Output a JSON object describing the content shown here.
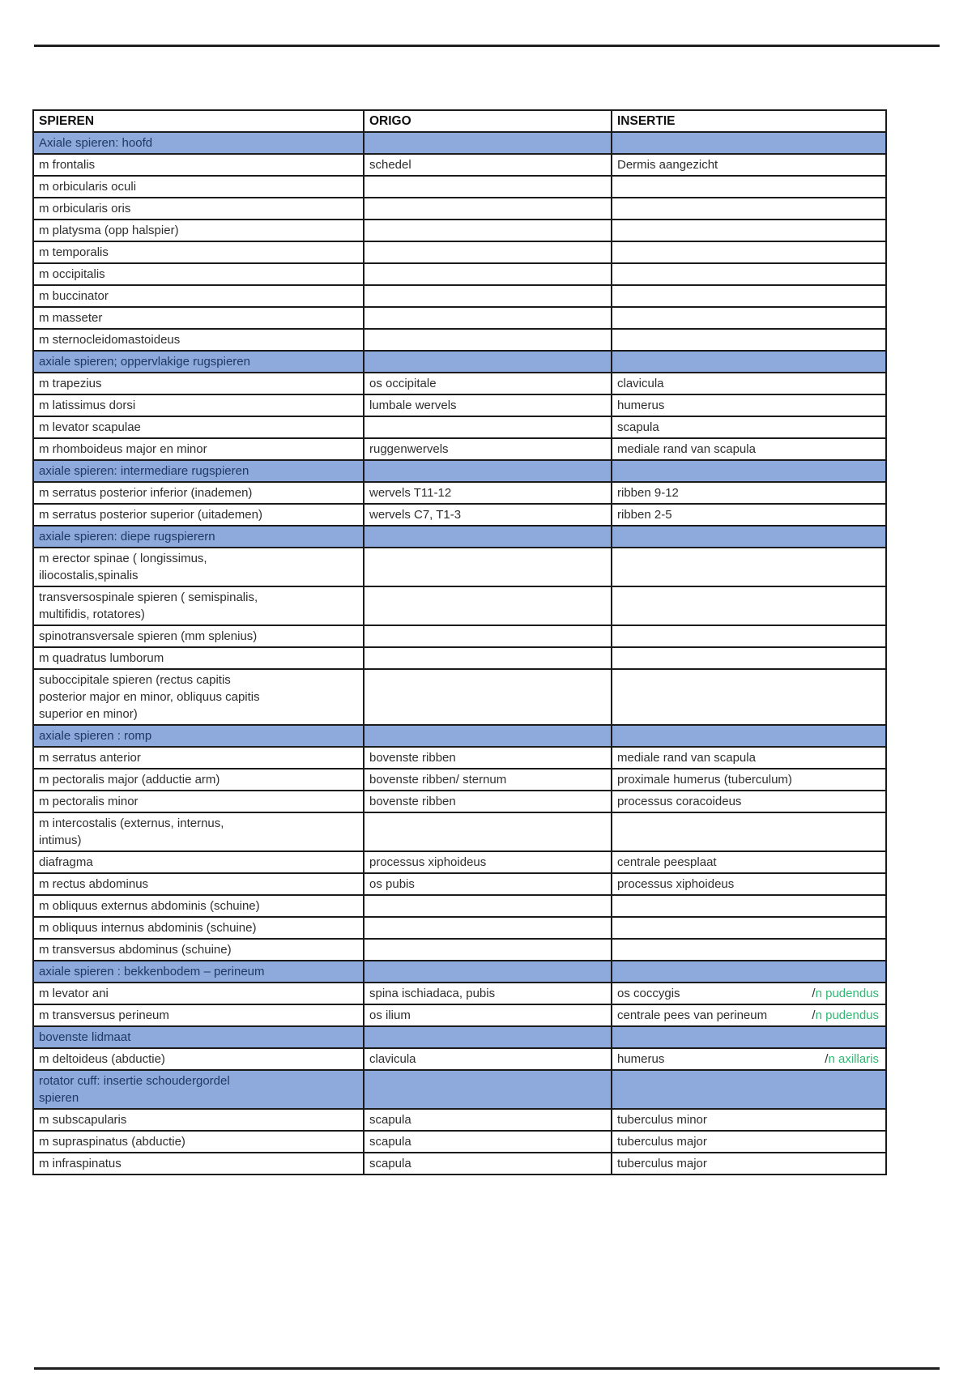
{
  "colors": {
    "section_bg": "#8eaadc",
    "section_text": "#1f3864",
    "nerve_green": "#2eb873",
    "border": "#1b1b1b",
    "text": "#2e2e2e",
    "rule": "#1f1f1f"
  },
  "table": {
    "columns": [
      "SPIEREN",
      "ORIGO",
      "INSERTIE"
    ],
    "rows": [
      {
        "type": "section",
        "label": "Axiale spieren: hoofd"
      },
      {
        "type": "data",
        "spieren": "m frontalis",
        "origo": "schedel",
        "insertie": "Dermis aangezicht"
      },
      {
        "type": "data",
        "spieren": "m orbicularis oculi",
        "origo": "",
        "insertie": ""
      },
      {
        "type": "data",
        "spieren": "m orbicularis oris",
        "origo": "",
        "insertie": ""
      },
      {
        "type": "data",
        "spieren": "m platysma (opp halspier)",
        "origo": "",
        "insertie": ""
      },
      {
        "type": "data",
        "spieren": "m temporalis",
        "origo": "",
        "insertie": ""
      },
      {
        "type": "data",
        "spieren": "m occipitalis",
        "origo": "",
        "insertie": ""
      },
      {
        "type": "data",
        "spieren": "m buccinator",
        "origo": "",
        "insertie": ""
      },
      {
        "type": "data",
        "spieren": "m masseter",
        "origo": "",
        "insertie": ""
      },
      {
        "type": "data",
        "spieren": "m sternocleidomastoideus",
        "origo": "",
        "insertie": ""
      },
      {
        "type": "section",
        "label": "axiale spieren; oppervlakige rugspieren"
      },
      {
        "type": "data",
        "spieren": "m trapezius",
        "origo": "os occipitale",
        "insertie": "clavicula"
      },
      {
        "type": "data",
        "spieren": "m latissimus dorsi",
        "origo": "lumbale wervels",
        "insertie": "humerus"
      },
      {
        "type": "data",
        "spieren": "m levator scapulae",
        "origo": "",
        "insertie": "scapula"
      },
      {
        "type": "data",
        "spieren": "m rhomboideus major en minor",
        "origo": "ruggenwervels",
        "insertie": "mediale rand van scapula"
      },
      {
        "type": "section",
        "label": "axiale spieren: intermediare rugspieren"
      },
      {
        "type": "data",
        "spieren": "m serratus posterior inferior (inademen)",
        "origo": "wervels T11-12",
        "insertie": "ribben 9-12"
      },
      {
        "type": "data",
        "spieren": "m serratus posterior superior (uitademen)",
        "origo": "wervels C7, T1-3",
        "insertie": "ribben 2-5"
      },
      {
        "type": "section",
        "label": "axiale spieren: diepe rugspierern"
      },
      {
        "type": "data",
        "spieren": "m erector spinae ( longissimus,\niliocostalis,spinalis",
        "origo": "",
        "insertie": ""
      },
      {
        "type": "data",
        "spieren": "transversospinale spieren ( semispinalis,\nmultifidis, rotatores)",
        "origo": "",
        "insertie": ""
      },
      {
        "type": "data",
        "spieren": "spinotransversale spieren (mm splenius)",
        "origo": "",
        "insertie": ""
      },
      {
        "type": "data",
        "spieren": "m quadratus lumborum",
        "origo": "",
        "insertie": ""
      },
      {
        "type": "data",
        "spieren": "suboccipitale spieren (rectus capitis\nposterior major en minor, obliquus capitis\nsuperior en minor)",
        "origo": "",
        "insertie": ""
      },
      {
        "type": "section",
        "label": "axiale spieren :  romp"
      },
      {
        "type": "data",
        "spieren": "m serratus anterior",
        "origo": "bovenste ribben",
        "insertie": "mediale rand van scapula"
      },
      {
        "type": "data",
        "spieren": "m pectoralis major (adductie arm)",
        "origo": "bovenste ribben/ sternum",
        "insertie": "proximale humerus (tuberculum)"
      },
      {
        "type": "data",
        "spieren": "m pectoralis minor",
        "origo": "bovenste ribben",
        "insertie": "processus coracoideus"
      },
      {
        "type": "data",
        "spieren": "m intercostalis (externus, internus,\nintimus)",
        "origo": "",
        "insertie": ""
      },
      {
        "type": "data",
        "spieren": "diafragma",
        "origo": "processus xiphoideus",
        "insertie": "centrale peesplaat"
      },
      {
        "type": "data",
        "spieren": "m rectus abdominus",
        "origo": "os pubis",
        "insertie": "processus xiphoideus"
      },
      {
        "type": "data",
        "spieren": "m obliquus externus abdominis (schuine)",
        "origo": "",
        "insertie": ""
      },
      {
        "type": "data",
        "spieren": "m obliquus internus abdominis (schuine)",
        "origo": "",
        "insertie": ""
      },
      {
        "type": "data",
        "spieren": "m transversus abdominus (schuine)",
        "origo": "",
        "insertie": ""
      },
      {
        "type": "section",
        "label": "axiale spieren : bekkenbodem – perineum"
      },
      {
        "type": "data",
        "spieren": "m levator ani",
        "origo": "spina ischiadaca, pubis",
        "insertie": "os coccygis",
        "nerve_prefix": "/",
        "nerve": "n pudendus"
      },
      {
        "type": "data",
        "spieren": "m transversus perineum",
        "origo": "os ilium",
        "insertie": "centrale pees van perineum",
        "nerve_prefix": "/",
        "nerve": "n pudendus"
      },
      {
        "type": "section",
        "label": "bovenste lidmaat"
      },
      {
        "type": "data",
        "spieren": "m deltoideus (abductie)",
        "origo": "clavicula",
        "insertie": "humerus",
        "nerve_prefix": "/",
        "nerve": "n axillaris"
      },
      {
        "type": "section",
        "label": "rotator cuff: insertie schoudergordel\nspieren"
      },
      {
        "type": "data",
        "spieren": "m subscapularis",
        "origo": "scapula",
        "insertie": "tuberculus minor"
      },
      {
        "type": "data",
        "spieren": "m supraspinatus (abductie)",
        "origo": "scapula",
        "insertie": "tuberculus major"
      },
      {
        "type": "data",
        "spieren": "m infraspinatus",
        "origo": "scapula",
        "insertie": "tuberculus major"
      }
    ]
  }
}
